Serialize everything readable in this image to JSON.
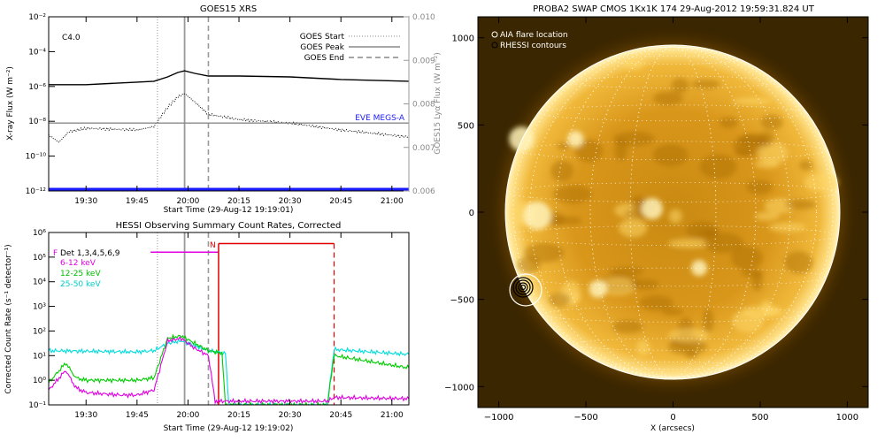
{
  "chart_data": [
    {
      "type": "line",
      "title": "GOES15 XRS",
      "xlabel": "Start Time (29-Aug-12 19:19:01)",
      "ylabel": "X-ray Flux (W m⁻²)",
      "y2label": "GOES15 Lyα Flux (W m⁻²)",
      "xticks": [
        "19:30",
        "19:45",
        "20:00",
        "20:15",
        "20:30",
        "20:45",
        "21:00"
      ],
      "yticks": [
        "10⁻¹²",
        "10⁻¹⁰",
        "10⁻⁸",
        "10⁻⁶",
        "10⁻⁴",
        "10⁻²"
      ],
      "y2ticks": [
        "0.006",
        "0.007",
        "0.008",
        "0.009",
        "0.010"
      ],
      "ylim": [
        -12,
        -2
      ],
      "y2lim": [
        0.006,
        0.01
      ],
      "yscale": "log",
      "flare_class": "C4.0",
      "legend": [
        "GOES Start",
        "GOES Peak",
        "GOES End"
      ],
      "annotation": "EVE MEGS-A",
      "markers": {
        "start": "19:51",
        "peak": "19:59",
        "end": "20:06"
      },
      "series": [
        {
          "name": "",
          "color": "#000000",
          "style": "solid",
          "x": [
            "19:19",
            "19:30",
            "19:45",
            "19:50",
            "19:54",
            "19:57",
            "19:59",
            "20:02",
            "20:06",
            "20:15",
            "20:30",
            "20:45",
            "21:05"
          ],
          "y": [
            -5.9,
            -5.9,
            -5.75,
            -5.7,
            -5.45,
            -5.2,
            -5.1,
            -5.25,
            -5.4,
            -5.4,
            -5.45,
            -5.6,
            -5.7
          ]
        },
        {
          "name": "",
          "color": "#000000",
          "style": "dotted",
          "x": [
            "19:19",
            "19:22",
            "19:25",
            "19:30",
            "19:45",
            "19:50",
            "19:54",
            "19:57",
            "19:59",
            "20:02",
            "20:06",
            "20:15",
            "20:30",
            "20:45",
            "21:05"
          ],
          "y": [
            -8.8,
            -9.2,
            -8.6,
            -8.4,
            -8.5,
            -8.3,
            -7.2,
            -6.6,
            -6.4,
            -6.9,
            -7.6,
            -7.9,
            -8.1,
            -8.5,
            -8.9
          ]
        },
        {
          "name": "",
          "color": "#888888",
          "style": "solid",
          "x": [
            "19:19",
            "21:05"
          ],
          "y": [
            -8.1,
            -8.1
          ]
        },
        {
          "name": "",
          "color": "#1a1aff",
          "style": "solid",
          "x": [
            "19:19",
            "21:05"
          ],
          "y": [
            -11.9,
            -11.9
          ]
        }
      ]
    },
    {
      "type": "line",
      "title": "HESSI Observing Summary Count Rates, Corrected",
      "xlabel": "Start Time (29-Aug-12 19:19:02)",
      "ylabel": "Corrected Count Rate (s⁻¹ detector⁻¹)",
      "xticks": [
        "19:30",
        "19:45",
        "20:00",
        "20:15",
        "20:30",
        "20:45",
        "21:00"
      ],
      "yticks": [
        "10⁻¹",
        "10⁰",
        "10¹",
        "10²",
        "10³",
        "10⁴",
        "10⁵",
        "10⁶"
      ],
      "ylim": [
        -1,
        6
      ],
      "yscale": "log",
      "legend": [
        "Det 1,3,4,5,6,9",
        "6-12 keV",
        "12-25 keV",
        "25-50 keV"
      ],
      "legend_colors": [
        "#000000",
        "#e000e0",
        "#00cc00",
        "#00dddd"
      ],
      "state_labels": {
        "F": "F",
        "N": "N"
      },
      "series": [
        {
          "name": "6-12 keV",
          "color": "#e000e0",
          "x": [
            "19:19",
            "19:24",
            "19:27",
            "19:30",
            "19:40",
            "19:45",
            "19:50",
            "19:54",
            "19:58",
            "20:02",
            "20:06",
            "20:08",
            "20:09",
            "20:41",
            "20:43",
            "21:05"
          ],
          "y": [
            -0.4,
            0.4,
            -0.3,
            -0.5,
            -0.6,
            -0.6,
            -0.4,
            1.6,
            1.7,
            1.3,
            1.0,
            -0.85,
            -0.85,
            -0.85,
            -0.7,
            -0.75
          ]
        },
        {
          "name": "12-25 keV",
          "color": "#00cc00",
          "x": [
            "19:19",
            "19:24",
            "19:27",
            "19:30",
            "19:45",
            "19:50",
            "19:54",
            "19:58",
            "20:02",
            "20:06",
            "20:10",
            "20:11",
            "20:41",
            "20:43",
            "21:05"
          ],
          "y": [
            -0.1,
            0.7,
            0.1,
            0.0,
            0.0,
            0.1,
            1.7,
            1.8,
            1.5,
            1.2,
            1.1,
            -1.0,
            -1.0,
            1.0,
            0.5
          ]
        },
        {
          "name": "25-50 keV",
          "color": "#00dddd",
          "x": [
            "19:19",
            "19:45",
            "19:50",
            "19:54",
            "19:58",
            "20:02",
            "20:06",
            "20:11",
            "20:12",
            "20:41",
            "20:43",
            "21:05"
          ],
          "y": [
            1.2,
            1.15,
            1.2,
            1.5,
            1.6,
            1.4,
            1.2,
            1.1,
            -1.0,
            -1.0,
            1.25,
            1.05
          ]
        }
      ]
    },
    {
      "type": "image",
      "title": "PROBA2 SWAP CMOS 1Kx1K 174 29-Aug-2012 19:59:31.824 UT",
      "xlabel": "X (arcsecs)",
      "ylabel": "",
      "xticks": [
        "−1000",
        "−500",
        "0",
        "500",
        "1000"
      ],
      "yticks": [
        "1000",
        "500",
        "0",
        "−500",
        "−1000"
      ],
      "xlim": [
        -1120,
        1120
      ],
      "ylim": [
        -1120,
        1120
      ],
      "legend": [
        "AIA flare location",
        "RHESSI contours"
      ],
      "solar_radius": 950,
      "flare_location": {
        "x": -830,
        "y": -440
      }
    }
  ]
}
